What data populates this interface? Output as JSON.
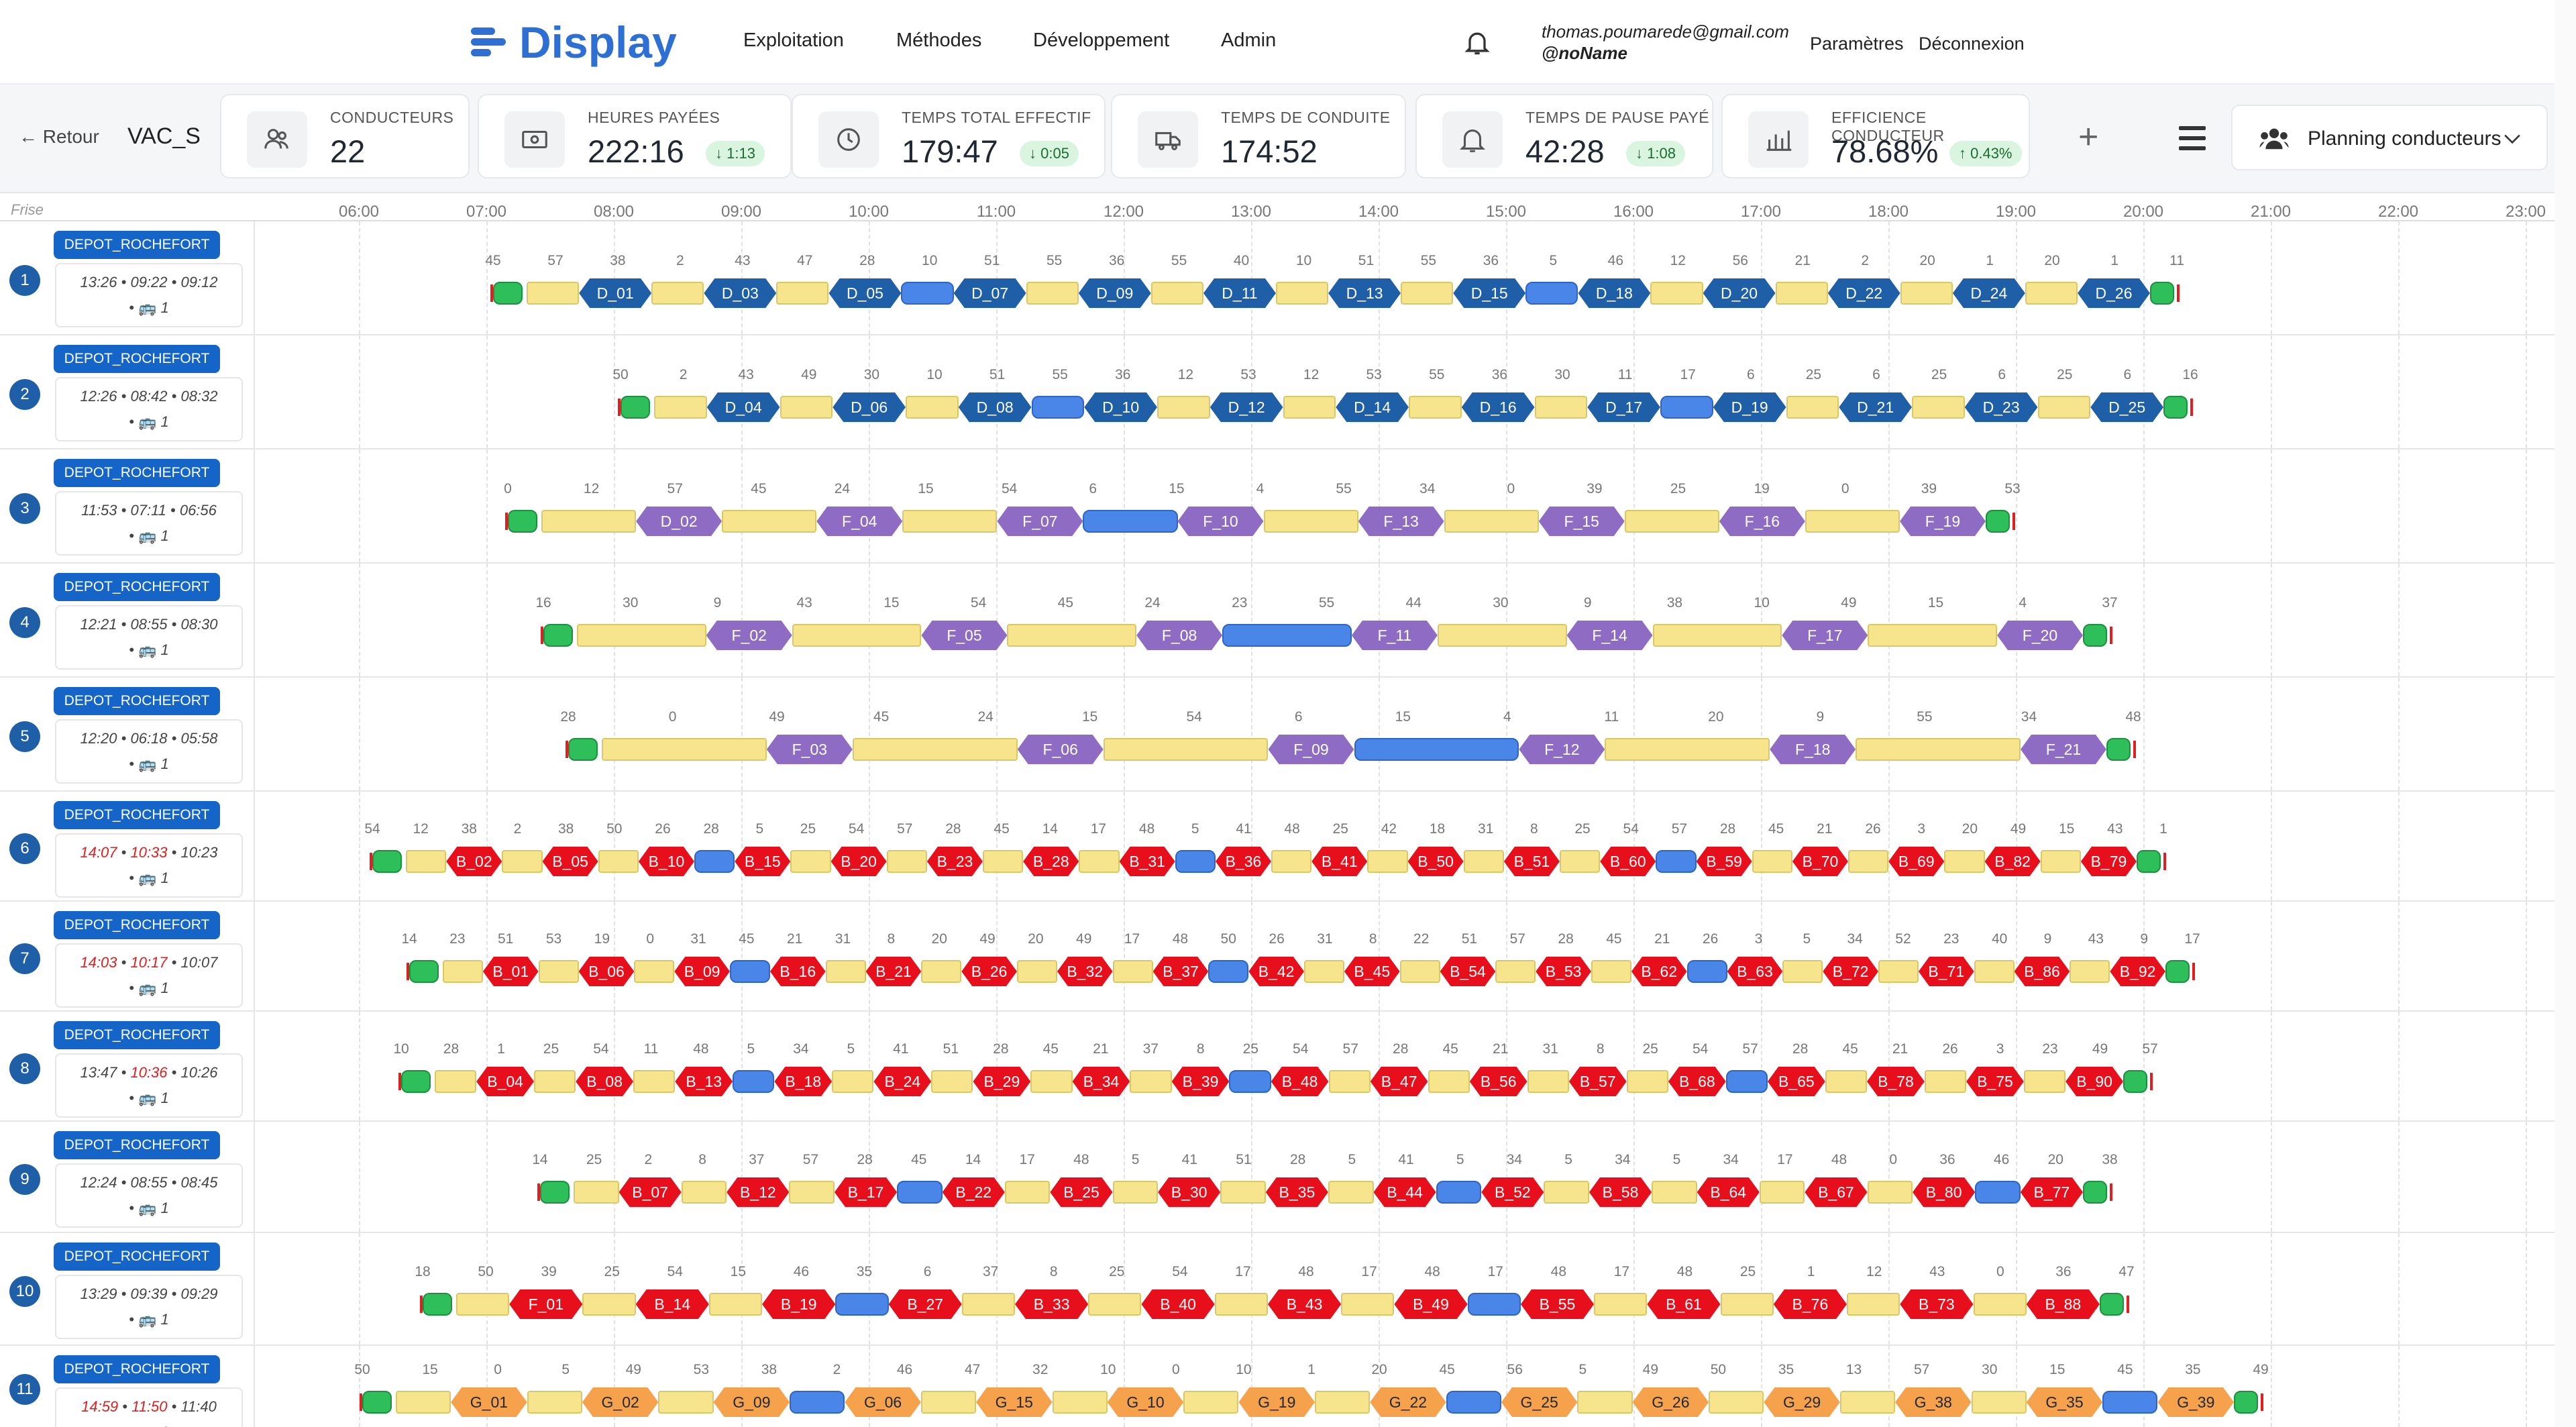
{
  "brand": {
    "name": "Display",
    "color": "#2d6fd2"
  },
  "nav": {
    "items": [
      "Exploitation",
      "Méthodes",
      "Développement",
      "Admin"
    ]
  },
  "user": {
    "email": "thomas.poumarede@gmail.com",
    "handle": "@noName"
  },
  "top_links": {
    "params": "Paramètres",
    "logout": "Déconnexion"
  },
  "kpi_bar": {
    "back": "← Retour",
    "scenario": "VAC_S",
    "cards": [
      {
        "icon": "users-icon",
        "label": "Conducteurs",
        "value": "22",
        "delta": ""
      },
      {
        "icon": "banknote-icon",
        "label": "Heures payées",
        "value": "222:16",
        "delta": "↓ 1:13"
      },
      {
        "icon": "clock-icon",
        "label": "Temps total effectif",
        "value": "179:47",
        "delta": "↓ 0:05"
      },
      {
        "icon": "truck-icon",
        "label": "Temps de conduite",
        "value": "174:52",
        "delta": ""
      },
      {
        "icon": "bell-pause-icon",
        "label": "Temps de pause payé",
        "value": "42:28",
        "delta": "↓ 1:08"
      },
      {
        "icon": "bar-chart-icon",
        "label": "Efficience conducteur",
        "value": "78.68%",
        "delta": "↑ 0.43%"
      }
    ],
    "add_icon": "+",
    "planning_dropdown": "Planning conducteurs"
  },
  "timeline": {
    "frise_label": "Frise",
    "hours": [
      "06:00",
      "07:00",
      "08:00",
      "09:00",
      "10:00",
      "11:00",
      "12:00",
      "13:00",
      "14:00",
      "15:00",
      "16:00",
      "17:00",
      "18:00",
      "19:00",
      "20:00",
      "21:00",
      "22:00",
      "23:00"
    ],
    "depot": "DEPOT_ROCHEFORT",
    "colors": {
      "blue": "#1f5fa8",
      "purple": "#8e6cc3",
      "red": "#e80f1c",
      "orange": "#f6a14b",
      "service": "#f6e58d",
      "depot_move": "#2ebf5b",
      "deadhead": "#4a86e8"
    },
    "rows": [
      {
        "num": "1",
        "t1": "13:26",
        "t2": "09:22",
        "t3": "09:12",
        "t1_red": false,
        "t2_red": false,
        "vehicles": "1",
        "color": "blue",
        "trips": [
          "D_01",
          "D_03",
          "D_05",
          "D_07",
          "D_09",
          "D_11",
          "D_13",
          "D_15",
          "D_18",
          "D_20",
          "D_22",
          "D_24",
          "D_26"
        ],
        "minutes": [
          "45",
          "57",
          "38",
          "2",
          "43",
          "47",
          "28",
          "10",
          "51",
          "55",
          "36",
          "55",
          "40",
          "10",
          "51",
          "55",
          "36",
          "5",
          "46",
          "12",
          "56",
          "21",
          "2",
          "20",
          "1",
          "20",
          "1",
          "11"
        ]
      },
      {
        "num": "2",
        "t1": "12:26",
        "t2": "08:42",
        "t3": "08:32",
        "t1_red": false,
        "t2_red": false,
        "vehicles": "1",
        "color": "blue",
        "trips": [
          "D_04",
          "D_06",
          "D_08",
          "D_10",
          "D_12",
          "D_14",
          "D_16",
          "D_17",
          "D_19",
          "D_21",
          "D_23",
          "D_25"
        ],
        "minutes": [
          "50",
          "2",
          "43",
          "49",
          "30",
          "10",
          "51",
          "55",
          "36",
          "12",
          "53",
          "12",
          "53",
          "55",
          "36",
          "30",
          "11",
          "17",
          "6",
          "25",
          "6",
          "25",
          "6",
          "25",
          "6",
          "16"
        ]
      },
      {
        "num": "3",
        "t1": "11:53",
        "t2": "07:11",
        "t3": "06:56",
        "t1_red": false,
        "t2_red": false,
        "vehicles": "1",
        "color": "purple",
        "trips": [
          "D_02",
          "F_04",
          "F_07",
          "F_10",
          "F_13",
          "F_15",
          "F_16",
          "F_19"
        ],
        "minutes": [
          "0",
          "12",
          "57",
          "45",
          "24",
          "15",
          "54",
          "6",
          "15",
          "4",
          "55",
          "34",
          "0",
          "39",
          "25",
          "19",
          "0",
          "39",
          "53"
        ]
      },
      {
        "num": "4",
        "t1": "12:21",
        "t2": "08:55",
        "t3": "08:30",
        "t1_red": false,
        "t2_red": false,
        "vehicles": "1",
        "color": "purple",
        "trips": [
          "F_02",
          "F_05",
          "F_08",
          "F_11",
          "F_14",
          "F_17",
          "F_20"
        ],
        "minutes": [
          "16",
          "30",
          "9",
          "43",
          "15",
          "54",
          "45",
          "24",
          "23",
          "55",
          "44",
          "30",
          "9",
          "38",
          "10",
          "49",
          "15",
          "4",
          "37"
        ]
      },
      {
        "num": "5",
        "t1": "12:20",
        "t2": "06:18",
        "t3": "05:58",
        "t1_red": false,
        "t2_red": false,
        "vehicles": "1",
        "color": "purple",
        "trips": [
          "F_03",
          "F_06",
          "F_09",
          "F_12",
          "F_18",
          "F_21"
        ],
        "minutes": [
          "28",
          "0",
          "49",
          "45",
          "24",
          "15",
          "54",
          "6",
          "15",
          "4",
          "11",
          "20",
          "9",
          "55",
          "34",
          "48"
        ]
      },
      {
        "num": "6",
        "t1": "14:07",
        "t2": "10:33",
        "t3": "10:23",
        "t1_red": true,
        "t2_red": true,
        "vehicles": "1",
        "color": "red",
        "trips": [
          "B_02",
          "B_05",
          "B_10",
          "B_15",
          "B_20",
          "B_23",
          "B_28",
          "B_31",
          "B_36",
          "B_41",
          "B_50",
          "B_51",
          "B_60",
          "B_59",
          "B_70",
          "B_69",
          "B_82",
          "B_79"
        ],
        "minutes": [
          "54",
          "12",
          "38",
          "2",
          "38",
          "50",
          "26",
          "28",
          "5",
          "25",
          "54",
          "57",
          "28",
          "45",
          "14",
          "17",
          "48",
          "5",
          "41",
          "48",
          "25",
          "42",
          "18",
          "31",
          "8",
          "25",
          "54",
          "57",
          "28",
          "45",
          "21",
          "26",
          "3",
          "20",
          "49",
          "15",
          "43",
          "1"
        ]
      },
      {
        "num": "7",
        "t1": "14:03",
        "t2": "10:17",
        "t3": "10:07",
        "t1_red": true,
        "t2_red": true,
        "vehicles": "1",
        "color": "red",
        "trips": [
          "B_01",
          "B_06",
          "B_09",
          "B_16",
          "B_21",
          "B_26",
          "B_32",
          "B_37",
          "B_42",
          "B_45",
          "B_54",
          "B_53",
          "B_62",
          "B_63",
          "B_72",
          "B_71",
          "B_86",
          "B_92"
        ],
        "minutes": [
          "14",
          "23",
          "51",
          "53",
          "19",
          "0",
          "31",
          "45",
          "21",
          "31",
          "8",
          "20",
          "49",
          "20",
          "49",
          "17",
          "48",
          "50",
          "26",
          "31",
          "8",
          "22",
          "51",
          "57",
          "28",
          "45",
          "21",
          "26",
          "3",
          "5",
          "34",
          "52",
          "23",
          "40",
          "9",
          "43",
          "9",
          "17"
        ]
      },
      {
        "num": "8",
        "t1": "13:47",
        "t2": "10:36",
        "t3": "10:26",
        "t1_red": false,
        "t2_red": true,
        "vehicles": "1",
        "color": "red",
        "trips": [
          "B_04",
          "B_08",
          "B_13",
          "B_18",
          "B_24",
          "B_29",
          "B_34",
          "B_39",
          "B_48",
          "B_47",
          "B_56",
          "B_57",
          "B_68",
          "B_65",
          "B_78",
          "B_75",
          "B_90"
        ],
        "minutes": [
          "10",
          "28",
          "1",
          "25",
          "54",
          "11",
          "48",
          "5",
          "34",
          "5",
          "41",
          "51",
          "28",
          "45",
          "21",
          "37",
          "8",
          "25",
          "54",
          "57",
          "28",
          "45",
          "21",
          "31",
          "8",
          "25",
          "54",
          "57",
          "28",
          "45",
          "21",
          "26",
          "3",
          "23",
          "49",
          "57"
        ]
      },
      {
        "num": "9",
        "t1": "12:24",
        "t2": "08:55",
        "t3": "08:45",
        "t1_red": false,
        "t2_red": false,
        "vehicles": "1",
        "color": "red",
        "trips": [
          "B_07",
          "B_12",
          "B_17",
          "B_22",
          "B_25",
          "B_30",
          "B_35",
          "B_44",
          "B_52",
          "B_58",
          "B_64",
          "B_67",
          "B_80",
          "B_77"
        ],
        "minutes": [
          "14",
          "25",
          "2",
          "8",
          "37",
          "57",
          "28",
          "45",
          "14",
          "17",
          "48",
          "5",
          "41",
          "51",
          "28",
          "5",
          "41",
          "5",
          "34",
          "5",
          "34",
          "5",
          "34",
          "17",
          "48",
          "0",
          "36",
          "46",
          "20",
          "38"
        ]
      },
      {
        "num": "10",
        "t1": "13:29",
        "t2": "09:39",
        "t3": "09:29",
        "t1_red": false,
        "t2_red": false,
        "vehicles": "1",
        "color": "red",
        "trips": [
          "F_01",
          "B_14",
          "B_19",
          "B_27",
          "B_33",
          "B_40",
          "B_43",
          "B_49",
          "B_55",
          "B_61",
          "B_76",
          "B_73",
          "B_88"
        ],
        "minutes": [
          "18",
          "50",
          "39",
          "25",
          "54",
          "15",
          "46",
          "35",
          "6",
          "37",
          "8",
          "25",
          "54",
          "17",
          "48",
          "17",
          "48",
          "17",
          "48",
          "17",
          "48",
          "25",
          "1",
          "12",
          "43",
          "0",
          "36",
          "47"
        ]
      },
      {
        "num": "11",
        "t1": "14:59",
        "t2": "11:50",
        "t3": "11:40",
        "t1_red": true,
        "t2_red": true,
        "vehicles": "1",
        "color": "orange",
        "trips": [
          "G_01",
          "G_02",
          "G_09",
          "G_06",
          "G_15",
          "G_10",
          "G_19",
          "G_22",
          "G_25",
          "G_26",
          "G_29",
          "G_38",
          "G_35",
          "G_39"
        ],
        "minutes": [
          "50",
          "15",
          "0",
          "5",
          "49",
          "53",
          "38",
          "2",
          "46",
          "47",
          "32",
          "10",
          "0",
          "10",
          "1",
          "20",
          "45",
          "56",
          "5",
          "49",
          "50",
          "35",
          "13",
          "57",
          "30",
          "15",
          "45",
          "35",
          "49"
        ]
      }
    ]
  }
}
